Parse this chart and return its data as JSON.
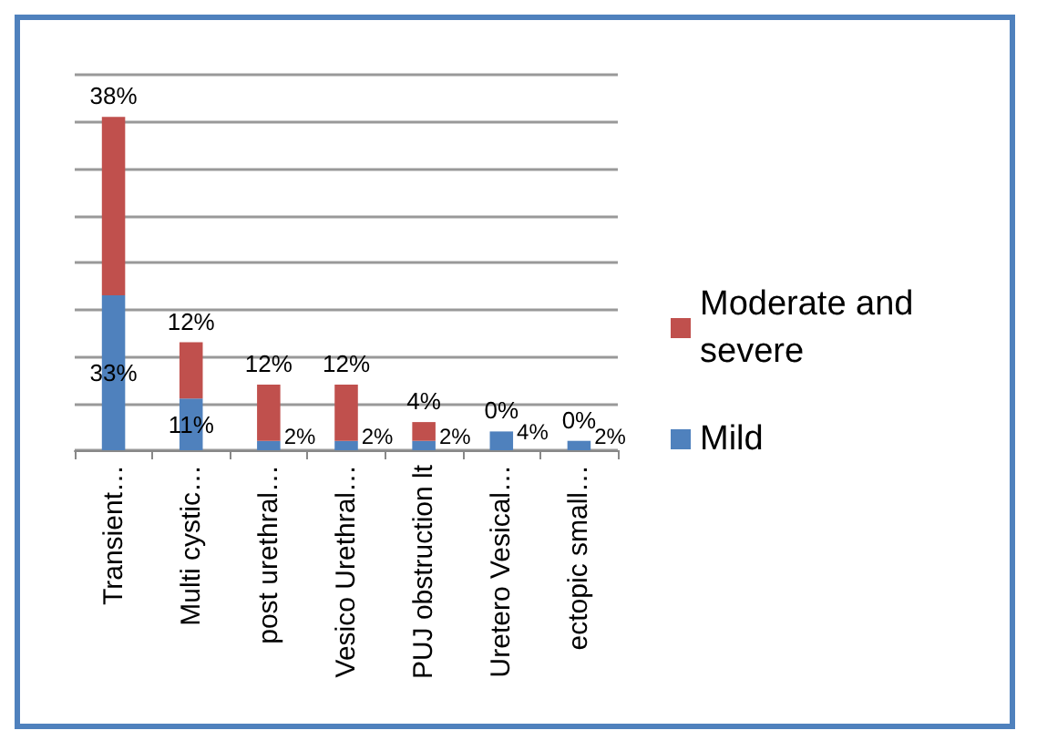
{
  "chart_data": {
    "type": "bar",
    "stacked": true,
    "grid": "y",
    "legend": "right",
    "categories": [
      "Transient…",
      "Multi cystic…",
      "post urethral…",
      "Vesico Urethral…",
      "PUJ obstruction lt",
      "Uretero Vesical…",
      "ectopic small…"
    ],
    "series": [
      {
        "name": "Mild",
        "color": "#4f81bd",
        "values": [
          33,
          11,
          2,
          2,
          2,
          4,
          2
        ],
        "value_labels": [
          "33%",
          "11%",
          "2%",
          "2%",
          "2%",
          "4%",
          "2%"
        ]
      },
      {
        "name": "Moderate and severe",
        "color": "#c0504d",
        "values": [
          38,
          12,
          12,
          12,
          4,
          0,
          0
        ],
        "value_labels": [
          "38%",
          "12%",
          "12%",
          "12%",
          "4%",
          "0%",
          "0%"
        ]
      }
    ]
  }
}
